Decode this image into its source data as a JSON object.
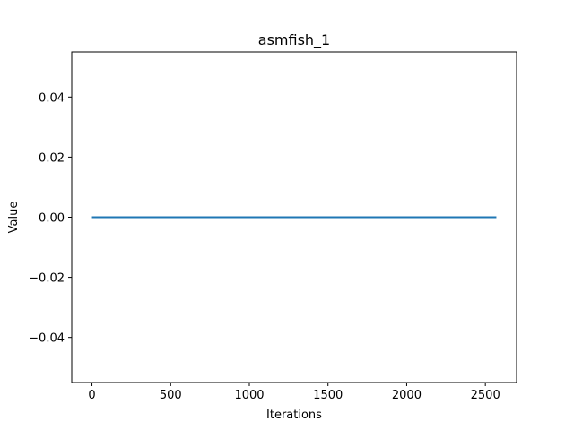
{
  "chart_data": {
    "type": "line",
    "title": "asmfish_1",
    "xlabel": "Iterations",
    "ylabel": "Value",
    "xlim": [
      -128.5,
      2698.5
    ],
    "ylim": [
      -0.055,
      0.055
    ],
    "xticks": [
      0,
      500,
      1000,
      1500,
      2000,
      2500
    ],
    "xtick_labels": [
      "0",
      "500",
      "1000",
      "1500",
      "2000",
      "2500"
    ],
    "yticks": [
      -0.04,
      -0.02,
      0.0,
      0.02,
      0.04
    ],
    "ytick_labels": [
      "−0.04",
      "−0.02",
      "0.00",
      "0.02",
      "0.04"
    ],
    "grid": false,
    "series": [
      {
        "color": "#1f77b4",
        "x": [
          0,
          2570
        ],
        "y": [
          0.0,
          0.0
        ]
      }
    ]
  }
}
